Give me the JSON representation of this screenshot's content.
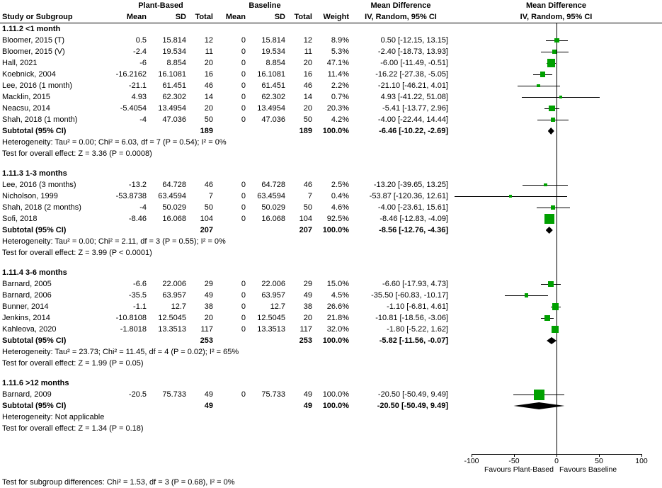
{
  "header": {
    "study": "Study or Subgroup",
    "group_plant": "Plant-Based",
    "group_baseline": "Baseline",
    "mean": "Mean",
    "sd": "SD",
    "total": "Total",
    "weight": "Weight",
    "md": "Mean Difference",
    "ci": "IV, Random, 95% CI"
  },
  "chart_data": {
    "type": "forest",
    "effect_measure": "Mean Difference",
    "method": "IV, Random, 95% CI",
    "marker_color": "#00A000",
    "diamond_color": "#000000",
    "axis": {
      "min": -120,
      "max": 120,
      "ticks": [
        -100,
        -50,
        0,
        50,
        100
      ],
      "favours_left": "Favours Plant-Based",
      "favours_right": "Favours Baseline"
    },
    "footer": "Test for subgroup differences: Chi² = 1.53, df = 3 (P = 0.68), I² = 0%",
    "subgroups": [
      {
        "title": "1.11.2 <1 month",
        "studies": [
          {
            "study": "Bloomer, 2015 (T)",
            "mean1": "0.5",
            "sd1": "15.814",
            "total1": "12",
            "mean2": "0",
            "sd2": "15.814",
            "total2": "12",
            "weight": "8.9%",
            "ci_text": "0.50 [-12.15, 13.15]",
            "est": 0.5,
            "lo": -12.15,
            "hi": 13.15,
            "weight_val": 8.9
          },
          {
            "study": "Bloomer, 2015 (V)",
            "mean1": "-2.4",
            "sd1": "19.534",
            "total1": "11",
            "mean2": "0",
            "sd2": "19.534",
            "total2": "11",
            "weight": "5.3%",
            "ci_text": "-2.40 [-18.73, 13.93]",
            "est": -2.4,
            "lo": -18.73,
            "hi": 13.93,
            "weight_val": 5.3
          },
          {
            "study": "Hall, 2021",
            "mean1": "-6",
            "sd1": "8.854",
            "total1": "20",
            "mean2": "0",
            "sd2": "8.854",
            "total2": "20",
            "weight": "47.1%",
            "ci_text": "-6.00 [-11.49, -0.51]",
            "est": -6,
            "lo": -11.49,
            "hi": -0.51,
            "weight_val": 47.1
          },
          {
            "study": "Koebnick, 2004",
            "mean1": "-16.2162",
            "sd1": "16.1081",
            "total1": "16",
            "mean2": "0",
            "sd2": "16.1081",
            "total2": "16",
            "weight": "11.4%",
            "ci_text": "-16.22 [-27.38, -5.05]",
            "est": -16.22,
            "lo": -27.38,
            "hi": -5.05,
            "weight_val": 11.4
          },
          {
            "study": "Lee, 2016 (1 month)",
            "mean1": "-21.1",
            "sd1": "61.451",
            "total1": "46",
            "mean2": "0",
            "sd2": "61.451",
            "total2": "46",
            "weight": "2.2%",
            "ci_text": "-21.10 [-46.21, 4.01]",
            "est": -21.1,
            "lo": -46.21,
            "hi": 4.01,
            "weight_val": 2.2
          },
          {
            "study": "Macklin, 2015",
            "mean1": "4.93",
            "sd1": "62.302",
            "total1": "14",
            "mean2": "0",
            "sd2": "62.302",
            "total2": "14",
            "weight": "0.7%",
            "ci_text": "4.93 [-41.22, 51.08]",
            "est": 4.93,
            "lo": -41.22,
            "hi": 51.08,
            "weight_val": 0.7
          },
          {
            "study": "Neacsu, 2014",
            "mean1": "-5.4054",
            "sd1": "13.4954",
            "total1": "20",
            "mean2": "0",
            "sd2": "13.4954",
            "total2": "20",
            "weight": "20.3%",
            "ci_text": "-5.41 [-13.77, 2.96]",
            "est": -5.41,
            "lo": -13.77,
            "hi": 2.96,
            "weight_val": 20.3
          },
          {
            "study": "Shah, 2018 (1 month)",
            "mean1": "-4",
            "sd1": "47.036",
            "total1": "50",
            "mean2": "0",
            "sd2": "47.036",
            "total2": "50",
            "weight": "4.2%",
            "ci_text": "-4.00 [-22.44, 14.44]",
            "est": -4,
            "lo": -22.44,
            "hi": 14.44,
            "weight_val": 4.2
          }
        ],
        "subtotal": {
          "label": "Subtotal (95% CI)",
          "total1": "189",
          "total2": "189",
          "weight": "100.0%",
          "ci_text": "-6.46 [-10.22, -2.69]",
          "est": -6.46,
          "lo": -10.22,
          "hi": -2.69
        },
        "heterogeneity": "Heterogeneity: Tau² = 0.00; Chi² = 6.03, df = 7 (P = 0.54); I² = 0%",
        "overall_effect": "Test for overall effect: Z = 3.36 (P = 0.0008)"
      },
      {
        "title": "1.11.3 1-3 months",
        "studies": [
          {
            "study": "Lee, 2016 (3 months)",
            "mean1": "-13.2",
            "sd1": "64.728",
            "total1": "46",
            "mean2": "0",
            "sd2": "64.728",
            "total2": "46",
            "weight": "2.5%",
            "ci_text": "-13.20 [-39.65, 13.25]",
            "est": -13.2,
            "lo": -39.65,
            "hi": 13.25,
            "weight_val": 2.5
          },
          {
            "study": "Nicholson, 1999",
            "mean1": "-53.8738",
            "sd1": "63.4594",
            "total1": "7",
            "mean2": "0",
            "sd2": "63.4594",
            "total2": "7",
            "weight": "0.4%",
            "ci_text": "-53.87 [-120.36, 12.61]",
            "est": -53.87,
            "lo": -120.36,
            "hi": 12.61,
            "weight_val": 0.4
          },
          {
            "study": "Shah, 2018 (2 months)",
            "mean1": "-4",
            "sd1": "50.029",
            "total1": "50",
            "mean2": "0",
            "sd2": "50.029",
            "total2": "50",
            "weight": "4.6%",
            "ci_text": "-4.00 [-23.61, 15.61]",
            "est": -4,
            "lo": -23.61,
            "hi": 15.61,
            "weight_val": 4.6
          },
          {
            "study": "Sofi, 2018",
            "mean1": "-8.46",
            "sd1": "16.068",
            "total1": "104",
            "mean2": "0",
            "sd2": "16.068",
            "total2": "104",
            "weight": "92.5%",
            "ci_text": "-8.46 [-12.83, -4.09]",
            "est": -8.46,
            "lo": -12.83,
            "hi": -4.09,
            "weight_val": 92.5
          }
        ],
        "subtotal": {
          "label": "Subtotal (95% CI)",
          "total1": "207",
          "total2": "207",
          "weight": "100.0%",
          "ci_text": "-8.56 [-12.76, -4.36]",
          "est": -8.56,
          "lo": -12.76,
          "hi": -4.36
        },
        "heterogeneity": "Heterogeneity: Tau² = 0.00; Chi² = 2.11, df = 3 (P = 0.55); I² = 0%",
        "overall_effect": "Test for overall effect: Z = 3.99 (P < 0.0001)"
      },
      {
        "title": "1.11.4 3-6 months",
        "studies": [
          {
            "study": "Barnard, 2005",
            "mean1": "-6.6",
            "sd1": "22.006",
            "total1": "29",
            "mean2": "0",
            "sd2": "22.006",
            "total2": "29",
            "weight": "15.0%",
            "ci_text": "-6.60 [-17.93, 4.73]",
            "est": -6.6,
            "lo": -17.93,
            "hi": 4.73,
            "weight_val": 15.0
          },
          {
            "study": "Barnard, 2006",
            "mean1": "-35.5",
            "sd1": "63.957",
            "total1": "49",
            "mean2": "0",
            "sd2": "63.957",
            "total2": "49",
            "weight": "4.5%",
            "ci_text": "-35.50 [-60.83, -10.17]",
            "est": -35.5,
            "lo": -60.83,
            "hi": -10.17,
            "weight_val": 4.5
          },
          {
            "study": "Bunner, 2014",
            "mean1": "-1.1",
            "sd1": "12.7",
            "total1": "38",
            "mean2": "0",
            "sd2": "12.7",
            "total2": "38",
            "weight": "26.6%",
            "ci_text": "-1.10 [-6.81, 4.61]",
            "est": -1.1,
            "lo": -6.81,
            "hi": 4.61,
            "weight_val": 26.6
          },
          {
            "study": "Jenkins, 2014",
            "mean1": "-10.8108",
            "sd1": "12.5045",
            "total1": "20",
            "mean2": "0",
            "sd2": "12.5045",
            "total2": "20",
            "weight": "21.8%",
            "ci_text": "-10.81 [-18.56, -3.06]",
            "est": -10.81,
            "lo": -18.56,
            "hi": -3.06,
            "weight_val": 21.8
          },
          {
            "study": "Kahleova, 2020",
            "mean1": "-1.8018",
            "sd1": "13.3513",
            "total1": "117",
            "mean2": "0",
            "sd2": "13.3513",
            "total2": "117",
            "weight": "32.0%",
            "ci_text": "-1.80 [-5.22, 1.62]",
            "est": -1.8,
            "lo": -5.22,
            "hi": 1.62,
            "weight_val": 32.0
          }
        ],
        "subtotal": {
          "label": "Subtotal (95% CI)",
          "total1": "253",
          "total2": "253",
          "weight": "100.0%",
          "ci_text": "-5.82 [-11.56, -0.07]",
          "est": -5.82,
          "lo": -11.56,
          "hi": -0.07
        },
        "heterogeneity": "Heterogeneity: Tau² = 23.73; Chi² = 11.45, df = 4 (P = 0.02); I² = 65%",
        "overall_effect": "Test for overall effect: Z = 1.99 (P = 0.05)"
      },
      {
        "title": "1.11.6 >12 months",
        "studies": [
          {
            "study": "Barnard, 2009",
            "mean1": "-20.5",
            "sd1": "75.733",
            "total1": "49",
            "mean2": "0",
            "sd2": "75.733",
            "total2": "49",
            "weight": "100.0%",
            "ci_text": "-20.50 [-50.49, 9.49]",
            "est": -20.5,
            "lo": -50.49,
            "hi": 9.49,
            "weight_val": 100.0
          }
        ],
        "subtotal": {
          "label": "Subtotal (95% CI)",
          "total1": "49",
          "total2": "49",
          "weight": "100.0%",
          "ci_text": "-20.50 [-50.49, 9.49]",
          "est": -20.5,
          "lo": -50.49,
          "hi": 9.49
        },
        "heterogeneity": "Heterogeneity: Not applicable",
        "overall_effect": "Test for overall effect: Z = 1.34 (P = 0.18)"
      }
    ]
  }
}
